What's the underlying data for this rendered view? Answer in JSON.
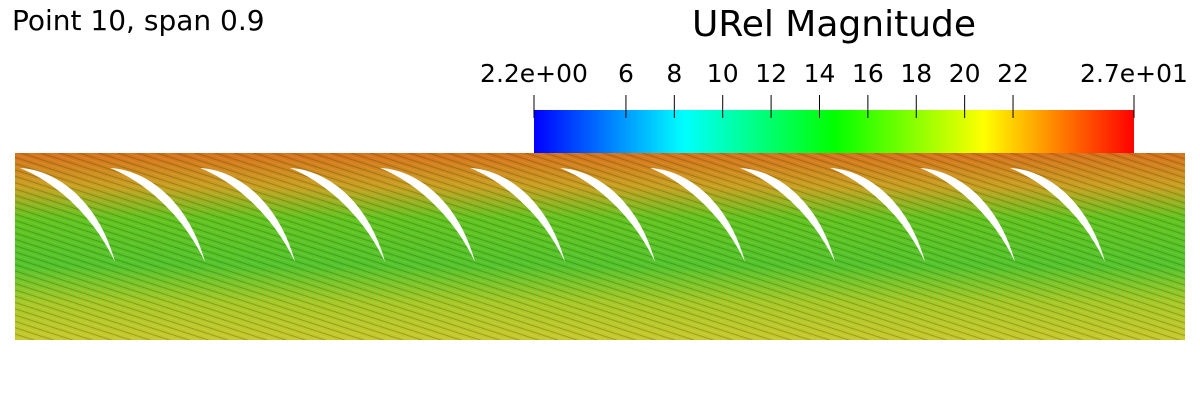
{
  "label": "Point 10, span 0.9",
  "colorbar": {
    "title": "URel Magnitude",
    "range": [
      2.2,
      27
    ],
    "ticks": [
      {
        "value": 2.2,
        "label": "2.2e+00"
      },
      6,
      8,
      10,
      12,
      14,
      16,
      18,
      20,
      22,
      {
        "value": 27,
        "label": "2.7e+01"
      }
    ],
    "colormap": [
      "#0000ff",
      "#00ffff",
      "#00ff00",
      "#ffff00",
      "#ff0000"
    ]
  }
}
